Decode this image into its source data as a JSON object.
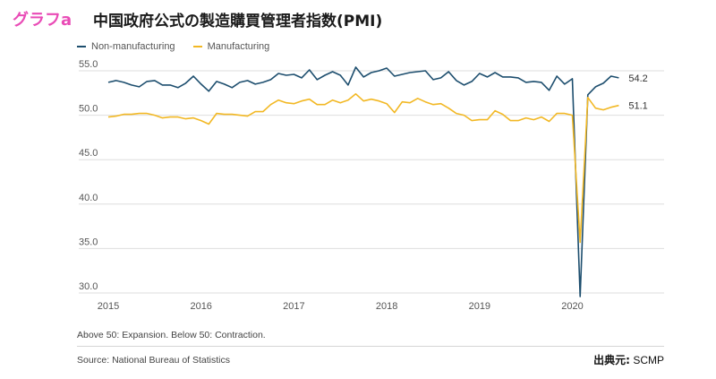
{
  "header": {
    "tag": "グラフa",
    "title": "中国政府公式の製造購買管理者指数(PMI)"
  },
  "footer": {
    "note": "Above 50: Expansion. Below 50: Contraction.",
    "source": "Source: National Bureau of Statistics",
    "credit_label": "出典元:",
    "credit_value": "SCMP"
  },
  "colors": {
    "non_manufacturing": "#1d4e6e",
    "manufacturing": "#f2b824",
    "grid": "#dedede",
    "axis_text": "#555555",
    "tag": "#e94bb6"
  },
  "chart_data": {
    "type": "line",
    "title": "中国政府公式の製造購買管理者指数(PMI)",
    "xlabel": "",
    "ylabel": "",
    "ylim": [
      30,
      55
    ],
    "xlim": [
      2015.0,
      2020.583
    ],
    "y_ticks": [
      30.0,
      35.0,
      40.0,
      45.0,
      50.0,
      55.0
    ],
    "y_tick_labels": [
      "30.0",
      "35.0",
      "40.0",
      "45.0",
      "50.0",
      "55.0"
    ],
    "x_ticks": [
      2015,
      2016,
      2017,
      2018,
      2019,
      2020
    ],
    "x_tick_labels": [
      "2015",
      "2016",
      "2017",
      "2018",
      "2019",
      "2020"
    ],
    "grid": true,
    "legend_position": "top-left",
    "series": [
      {
        "name": "Non-manufacturing",
        "color": "#1d4e6e",
        "end_label": "54.2",
        "values": [
          53.7,
          53.9,
          53.7,
          53.4,
          53.2,
          53.8,
          53.9,
          53.4,
          53.4,
          53.1,
          53.6,
          54.4,
          53.5,
          52.7,
          53.8,
          53.5,
          53.1,
          53.7,
          53.9,
          53.5,
          53.7,
          54.0,
          54.7,
          54.5,
          54.6,
          54.2,
          55.1,
          54.0,
          54.5,
          54.9,
          54.5,
          53.4,
          55.4,
          54.3,
          54.8,
          55.0,
          55.3,
          54.4,
          54.6,
          54.8,
          54.9,
          55.0,
          54.0,
          54.2,
          54.9,
          53.9,
          53.4,
          53.8,
          54.7,
          54.3,
          54.8,
          54.3,
          54.3,
          54.2,
          53.7,
          53.8,
          53.7,
          52.8,
          54.4,
          53.5,
          54.1,
          29.6,
          52.3,
          53.2,
          53.6,
          54.4,
          54.2
        ],
        "x_start": 2015.0,
        "x_step": 0.08333
      },
      {
        "name": "Manufacturing",
        "color": "#f2b824",
        "end_label": "51.1",
        "values": [
          49.8,
          49.9,
          50.1,
          50.1,
          50.2,
          50.2,
          50.0,
          49.7,
          49.8,
          49.8,
          49.6,
          49.7,
          49.4,
          49.0,
          50.2,
          50.1,
          50.1,
          50.0,
          49.9,
          50.4,
          50.4,
          51.2,
          51.7,
          51.4,
          51.3,
          51.6,
          51.8,
          51.2,
          51.2,
          51.7,
          51.4,
          51.7,
          52.4,
          51.6,
          51.8,
          51.6,
          51.3,
          50.3,
          51.5,
          51.4,
          51.9,
          51.5,
          51.2,
          51.3,
          50.8,
          50.2,
          50.0,
          49.4,
          49.5,
          49.5,
          50.5,
          50.1,
          49.4,
          49.4,
          49.7,
          49.5,
          49.8,
          49.3,
          50.2,
          50.2,
          50.0,
          35.7,
          52.0,
          50.8,
          50.6,
          50.9,
          51.1
        ],
        "x_start": 2015.0,
        "x_step": 0.08333
      }
    ]
  }
}
